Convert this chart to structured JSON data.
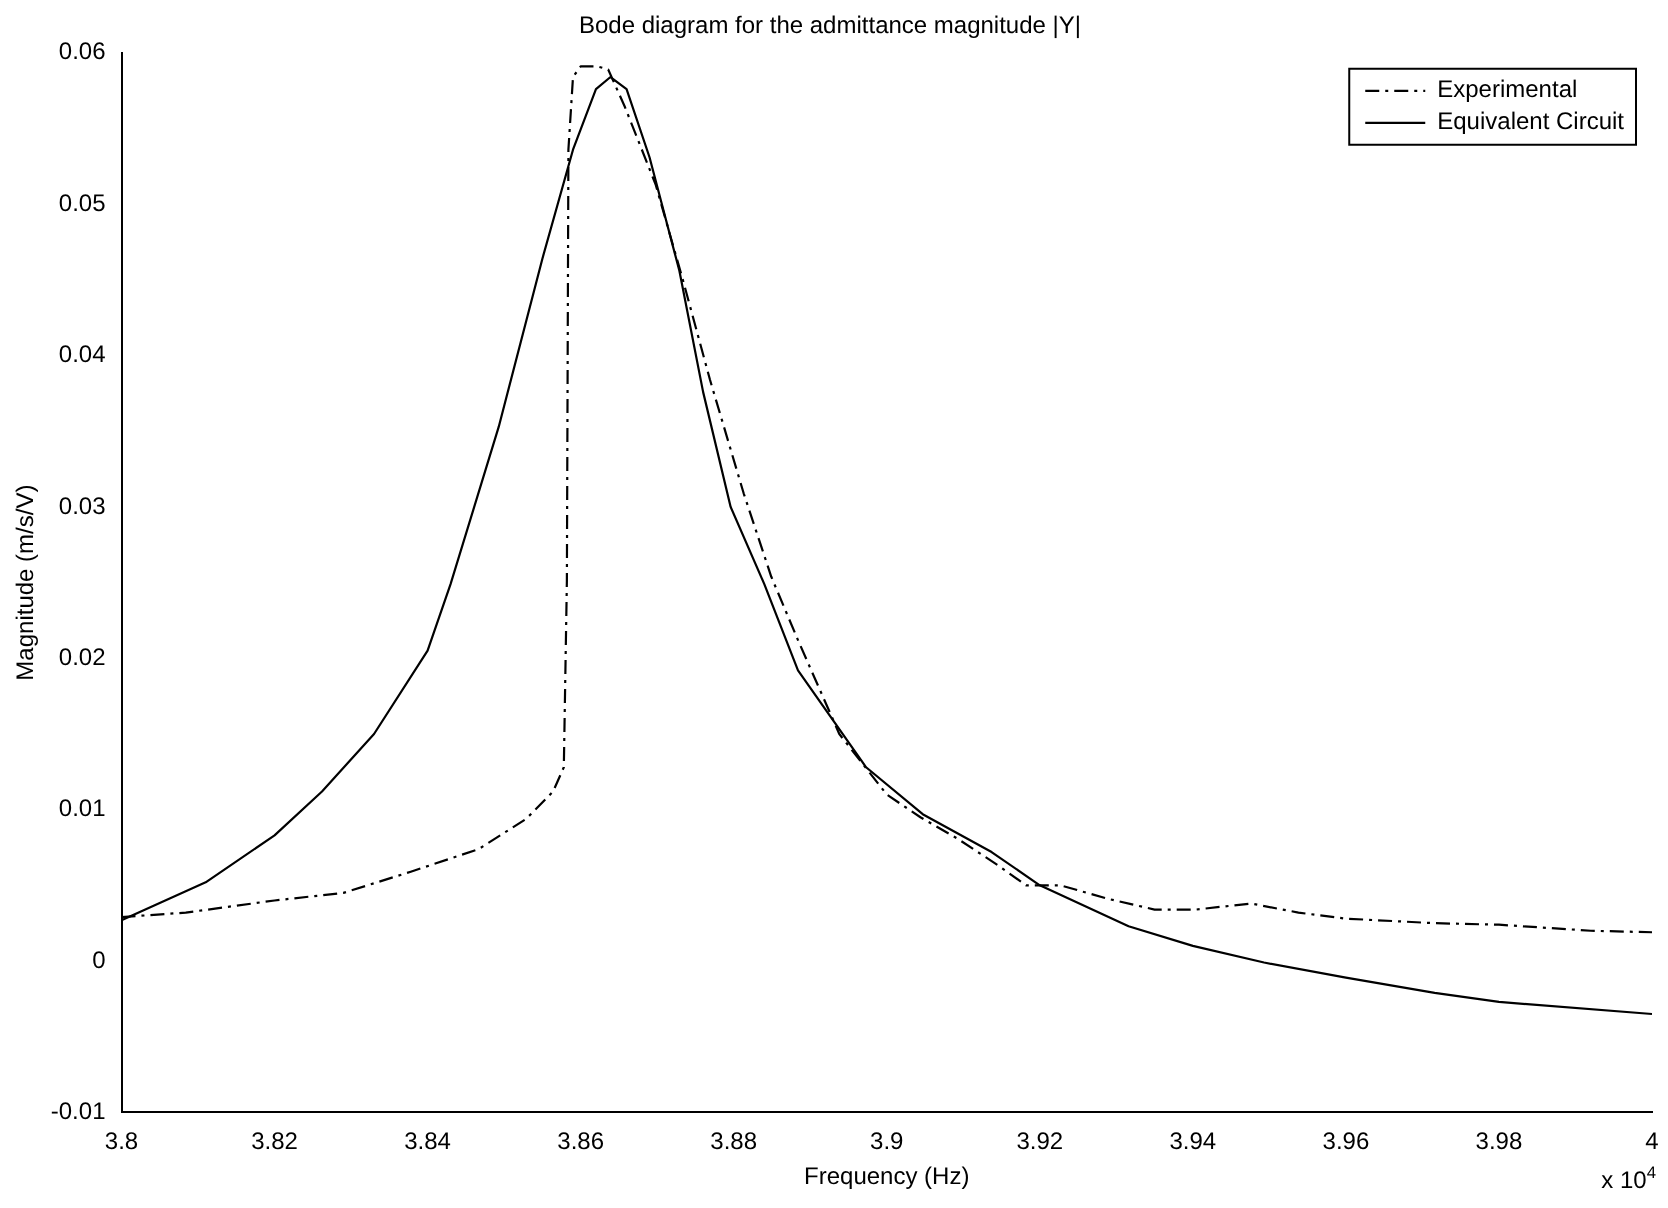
{
  "chart_data": {
    "type": "line",
    "title": "Bode diagram for the admittance magnitude |Y|",
    "xlabel": "Frequency (Hz)",
    "ylabel": "Magnitude (m/s/V)",
    "annotations": [
      "x 10$^{4}$"
    ],
    "xlim": [
      3.8,
      4.0
    ],
    "xticks": [
      3.8,
      3.82,
      3.84,
      3.86,
      3.88,
      3.9,
      3.92,
      3.94,
      3.96,
      3.98,
      {
        "value": 4.0,
        "label": "4"
      }
    ],
    "ylim": [
      -0.01,
      0.06
    ],
    "yticks": [
      -0.01,
      0,
      0.01,
      0.02,
      0.03,
      0.04,
      0.05,
      0.06
    ],
    "grid": false,
    "legend": "top right",
    "marker": "none",
    "series": [
      {
        "name": "Experimental",
        "color": "#000000",
        "line_style": "dashed",
        "x": [
          3.8,
          3.8084,
          3.82,
          3.829,
          3.8378,
          3.8467,
          3.8529,
          3.8564,
          3.8578,
          3.8582,
          3.8584,
          3.859,
          3.86,
          3.8622,
          3.8636,
          3.8658,
          3.8698,
          3.8733,
          3.8769,
          3.8813,
          3.8849,
          3.8884,
          3.8938,
          3.9,
          3.9044,
          3.9092,
          3.9146,
          3.9182,
          3.9227,
          3.929,
          3.935,
          3.9404,
          3.9476,
          3.9538,
          3.96,
          3.9716,
          3.98,
          3.992,
          4.0
        ],
        "values": [
          0.0029,
          0.0032,
          0.004,
          0.0045,
          0.0059,
          0.0074,
          0.0094,
          0.0112,
          0.0128,
          0.0251,
          0.0536,
          0.0584,
          0.0591,
          0.0591,
          0.0589,
          0.0564,
          0.0513,
          0.0451,
          0.0384,
          0.0309,
          0.0254,
          0.0212,
          0.015,
          0.011,
          0.0095,
          0.0081,
          0.0063,
          0.005,
          0.005,
          0.0041,
          0.0034,
          0.0034,
          0.0038,
          0.0032,
          0.0028,
          0.0025,
          0.0024,
          0.002,
          0.0019
        ]
      },
      {
        "name": "Equivalent Circuit",
        "color": "#000000",
        "line_style": "solid",
        "x": [
          3.8,
          3.811,
          3.82,
          3.8262,
          3.833,
          3.84,
          3.843,
          3.8493,
          3.855,
          3.859,
          3.862,
          3.8639,
          3.866,
          3.869,
          3.8729,
          3.876,
          3.8796,
          3.884,
          3.8884,
          3.8973,
          3.9047,
          3.9137,
          3.92,
          3.9316,
          3.94,
          3.9493,
          3.96,
          3.9716,
          3.98,
          4.0
        ],
        "values": [
          0.0027,
          0.0052,
          0.0083,
          0.0112,
          0.015,
          0.0205,
          0.0249,
          0.0353,
          0.0464,
          0.0536,
          0.0576,
          0.0584,
          0.0576,
          0.0531,
          0.0456,
          0.0376,
          0.03,
          0.0249,
          0.0192,
          0.0128,
          0.0097,
          0.0072,
          0.005,
          0.0023,
          0.001,
          -0.0001,
          -0.0011,
          -0.0021,
          -0.0027,
          -0.0035
        ]
      }
    ]
  }
}
